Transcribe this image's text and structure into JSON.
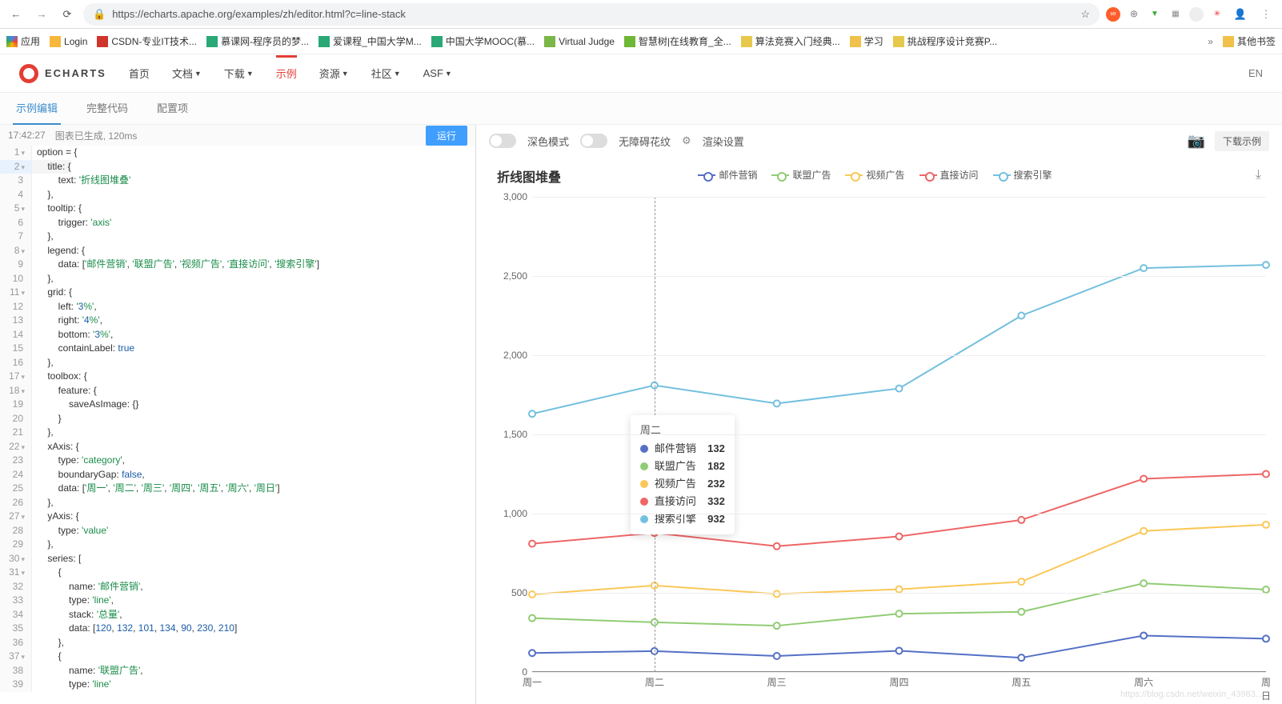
{
  "browser": {
    "url": "https://echarts.apache.org/examples/zh/editor.html?c=line-stack",
    "star_icon": "☆",
    "ext_icons": [
      {
        "bg": "#ff5d2b",
        "glyph": "∞",
        "fg": "#fff"
      },
      {
        "bg": "#fff",
        "glyph": "◎",
        "fg": "#333"
      },
      {
        "bg": "#fff",
        "glyph": "▼",
        "fg": "#3aaa35"
      },
      {
        "bg": "#fff",
        "glyph": "▦",
        "fg": "#888"
      },
      {
        "bg": "#eee",
        "glyph": "",
        "fg": "#888"
      },
      {
        "bg": "#fff",
        "glyph": "✳",
        "fg": "#e33"
      }
    ]
  },
  "bookmarks": {
    "apps_label": "应用",
    "items": [
      {
        "color": "#f6b73c",
        "label": "Login"
      },
      {
        "color": "#d0352c",
        "label": "CSDN-专业IT技术..."
      },
      {
        "color": "#2aa876",
        "label": "慕课网-程序员的梦..."
      },
      {
        "color": "#2aa876",
        "label": "爱课程_中国大学M..."
      },
      {
        "color": "#2aa876",
        "label": "中国大学MOOC(慕..."
      },
      {
        "color": "#7ab648",
        "label": "Virtual Judge"
      },
      {
        "color": "#6fb736",
        "label": "智慧树|在线教育_全..."
      },
      {
        "color": "#e6c84c",
        "label": "算法竞赛入门经典..."
      },
      {
        "color": "#f0c24b",
        "label": "学习"
      },
      {
        "color": "#e6c84c",
        "label": "挑战程序设计竞赛P..."
      }
    ],
    "overflow": "»",
    "other_label": "其他书签"
  },
  "header": {
    "logo_text": "ECHARTS",
    "nav": [
      {
        "label": "首页",
        "caret": false
      },
      {
        "label": "文档",
        "caret": true
      },
      {
        "label": "下载",
        "caret": true
      },
      {
        "label": "示例",
        "caret": false,
        "active": true
      },
      {
        "label": "资源",
        "caret": true
      },
      {
        "label": "社区",
        "caret": true
      },
      {
        "label": "ASF",
        "caret": true
      }
    ],
    "lang": "EN"
  },
  "subtabs": {
    "items": [
      "示例编辑",
      "完整代码",
      "配置项"
    ],
    "active_index": 0
  },
  "editor_status": {
    "time": "17:42:27",
    "msg": "图表已生成, 120ms",
    "run": "运行"
  },
  "code": {
    "lines": [
      {
        "n": 1,
        "f": "▾",
        "t": "option = {"
      },
      {
        "n": 2,
        "f": "▾",
        "t": "    title: {",
        "hl": true
      },
      {
        "n": 3,
        "f": "",
        "t": "        text: '折线图堆叠'"
      },
      {
        "n": 4,
        "f": "",
        "t": "    },"
      },
      {
        "n": 5,
        "f": "▾",
        "t": "    tooltip: {"
      },
      {
        "n": 6,
        "f": "",
        "t": "        trigger: 'axis'"
      },
      {
        "n": 7,
        "f": "",
        "t": "    },"
      },
      {
        "n": 8,
        "f": "▾",
        "t": "    legend: {"
      },
      {
        "n": 9,
        "f": "",
        "t": "        data: ['邮件营销', '联盟广告', '视频广告', '直接访问', '搜索引擎']"
      },
      {
        "n": 10,
        "f": "",
        "t": "    },"
      },
      {
        "n": 11,
        "f": "▾",
        "t": "    grid: {"
      },
      {
        "n": 12,
        "f": "",
        "t": "        left: '3%',"
      },
      {
        "n": 13,
        "f": "",
        "t": "        right: '4%',"
      },
      {
        "n": 14,
        "f": "",
        "t": "        bottom: '3%',"
      },
      {
        "n": 15,
        "f": "",
        "t": "        containLabel: true"
      },
      {
        "n": 16,
        "f": "",
        "t": "    },"
      },
      {
        "n": 17,
        "f": "▾",
        "t": "    toolbox: {"
      },
      {
        "n": 18,
        "f": "▾",
        "t": "        feature: {"
      },
      {
        "n": 19,
        "f": "",
        "t": "            saveAsImage: {}"
      },
      {
        "n": 20,
        "f": "",
        "t": "        }"
      },
      {
        "n": 21,
        "f": "",
        "t": "    },"
      },
      {
        "n": 22,
        "f": "▾",
        "t": "    xAxis: {"
      },
      {
        "n": 23,
        "f": "",
        "t": "        type: 'category',"
      },
      {
        "n": 24,
        "f": "",
        "t": "        boundaryGap: false,"
      },
      {
        "n": 25,
        "f": "",
        "t": "        data: ['周一', '周二', '周三', '周四', '周五', '周六', '周日']"
      },
      {
        "n": 26,
        "f": "",
        "t": "    },"
      },
      {
        "n": 27,
        "f": "▾",
        "t": "    yAxis: {"
      },
      {
        "n": 28,
        "f": "",
        "t": "        type: 'value'"
      },
      {
        "n": 29,
        "f": "",
        "t": "    },"
      },
      {
        "n": 30,
        "f": "▾",
        "t": "    series: ["
      },
      {
        "n": 31,
        "f": "▾",
        "t": "        {"
      },
      {
        "n": 32,
        "f": "",
        "t": "            name: '邮件营销',"
      },
      {
        "n": 33,
        "f": "",
        "t": "            type: 'line',"
      },
      {
        "n": 34,
        "f": "",
        "t": "            stack: '总量',"
      },
      {
        "n": 35,
        "f": "",
        "t": "            data: [120, 132, 101, 134, 90, 230, 210]"
      },
      {
        "n": 36,
        "f": "",
        "t": "        },"
      },
      {
        "n": 37,
        "f": "▾",
        "t": "        {"
      },
      {
        "n": 38,
        "f": "",
        "t": "            name: '联盟广告',"
      },
      {
        "n": 39,
        "f": "",
        "t": "            type: 'line'"
      }
    ]
  },
  "right_toolbar": {
    "dark_mode": "深色模式",
    "accessible": "无障碍花纹",
    "render_settings": "渲染设置",
    "download": "下载示例"
  },
  "chart": {
    "title": "折线图堆叠",
    "colors": {
      "mail": "#5470c6",
      "union": "#91cc75",
      "video": "#fac858",
      "direct": "#ee6666",
      "search": "#73c0de",
      "grid": "#eeeeee",
      "axis": "#888888",
      "text": "#666666",
      "bg": "#ffffff"
    },
    "font": {
      "title_size": 16,
      "axis_size": 12,
      "legend_size": 12
    },
    "legend": [
      {
        "key": "mail",
        "label": "邮件营销"
      },
      {
        "key": "union",
        "label": "联盟广告"
      },
      {
        "key": "video",
        "label": "视频广告"
      },
      {
        "key": "direct",
        "label": "直接访问"
      },
      {
        "key": "search",
        "label": "搜索引擎"
      }
    ],
    "x_categories": [
      "周一",
      "周二",
      "周三",
      "周四",
      "周五",
      "周六",
      "周日"
    ],
    "y": {
      "min": 0,
      "max": 3000,
      "step": 500,
      "labels": [
        "0",
        "500",
        "1,000",
        "1,500",
        "2,000",
        "2,500",
        "3,000"
      ]
    },
    "series": {
      "mail": [
        120,
        132,
        101,
        134,
        90,
        230,
        210
      ],
      "union": [
        220,
        182,
        191,
        234,
        290,
        330,
        310
      ],
      "video": [
        150,
        232,
        201,
        154,
        190,
        330,
        410
      ],
      "direct": [
        320,
        332,
        301,
        334,
        390,
        330,
        320
      ],
      "search": [
        820,
        932,
        901,
        934,
        1290,
        1330,
        1320
      ]
    },
    "stacked": true,
    "line_width": 2,
    "marker_size": 4,
    "hover_index": 1,
    "tooltip": {
      "title": "周二",
      "rows": [
        {
          "key": "mail",
          "label": "邮件营销",
          "value": "132"
        },
        {
          "key": "union",
          "label": "联盟广告",
          "value": "182"
        },
        {
          "key": "video",
          "label": "视频广告",
          "value": "232"
        },
        {
          "key": "direct",
          "label": "直接访问",
          "value": "332"
        },
        {
          "key": "search",
          "label": "搜索引擎",
          "value": "932"
        }
      ]
    }
  },
  "watermark": "https://blog.csdn.net/weixin_43983..."
}
